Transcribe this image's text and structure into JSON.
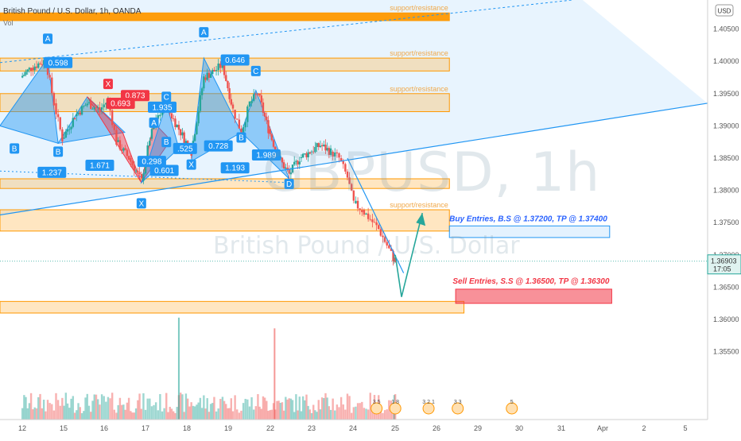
{
  "header": {
    "title": "British Pound / U.S. Dollar, 1h, OANDA",
    "vol_label": "Vol"
  },
  "watermark": {
    "symbol": "GBPUSD, 1h",
    "name": "British Pound / U.S. Dollar"
  },
  "currency_button": "USD",
  "price_tag": {
    "price": "1.36903",
    "time": "17:05"
  },
  "colors": {
    "bull": "#26a69a",
    "bear": "#ef5350",
    "orange": "#ff9800",
    "blue_zone": "#2196f3",
    "harmonic_blue": "#2196f3",
    "harmonic_red": "#f23645"
  },
  "zones": [
    {
      "name": "resistance-zone-1",
      "label": "support/resistance",
      "top": 1.4075,
      "bottom": 1.4063,
      "style": "solid"
    },
    {
      "name": "resistance-zone-2",
      "label": "support/resistance",
      "top": 1.4005,
      "bottom": 1.3985,
      "style": "light"
    },
    {
      "name": "resistance-zone-3",
      "label": "support/resistance",
      "top": 1.395,
      "bottom": 1.3922,
      "style": "light"
    },
    {
      "name": "support-zone-1",
      "label": "",
      "top": 1.3818,
      "bottom": 1.3803,
      "style": "light"
    },
    {
      "name": "support-zone-2",
      "label": "support/resistance",
      "top": 1.377,
      "bottom": 1.3737,
      "style": "light"
    },
    {
      "name": "support-zone-3",
      "label": "",
      "top": 1.3628,
      "bottom": 1.361,
      "style": "light"
    }
  ],
  "harmonic_labels": {
    "points": [
      {
        "id": "pt-a1",
        "text": "A",
        "x": 1.3,
        "y": 1.4035,
        "color": "blue"
      },
      {
        "id": "pt-b1",
        "text": "B",
        "x": 1.8,
        "y": 1.386,
        "color": "blue"
      },
      {
        "id": "pt-x1",
        "text": "X",
        "x": 4.2,
        "y": 1.3965,
        "color": "red"
      },
      {
        "id": "pt-x2",
        "text": "X",
        "x": 5.8,
        "y": 1.378,
        "color": "blue"
      },
      {
        "id": "pt-a2",
        "text": "A",
        "x": 6.4,
        "y": 1.3905,
        "color": "blue"
      },
      {
        "id": "pt-c1",
        "text": "C",
        "x": 7.0,
        "y": 1.3945,
        "color": "blue"
      },
      {
        "id": "pt-b2",
        "text": "B",
        "x": 7.0,
        "y": 1.3875,
        "color": "blue"
      },
      {
        "id": "pt-x3",
        "text": "X",
        "x": 8.2,
        "y": 1.384,
        "color": "blue"
      },
      {
        "id": "pt-a3",
        "text": "A",
        "x": 8.8,
        "y": 1.4045,
        "color": "blue"
      },
      {
        "id": "pt-b3",
        "text": "B",
        "x": 10.6,
        "y": 1.3882,
        "color": "blue"
      },
      {
        "id": "pt-c2",
        "text": "C",
        "x": 11.3,
        "y": 1.3985,
        "color": "blue"
      },
      {
        "id": "pt-d1",
        "text": "D",
        "x": 12.9,
        "y": 1.381,
        "color": "blue"
      },
      {
        "id": "pt-b0",
        "text": "B",
        "x": -0.3,
        "y": 1.3865,
        "color": "blue"
      }
    ],
    "ratios": [
      {
        "id": "r-0598",
        "text": "0.598",
        "x": 1.8,
        "y": 1.3998,
        "color": "blue"
      },
      {
        "id": "r-1237",
        "text": "1.237",
        "x": 1.5,
        "y": 1.3828,
        "color": "blue"
      },
      {
        "id": "r-1671",
        "text": "1.671",
        "x": 3.8,
        "y": 1.3839,
        "color": "blue"
      },
      {
        "id": "r-0873",
        "text": "0.873",
        "x": 5.5,
        "y": 1.3947,
        "color": "red"
      },
      {
        "id": "r-0693",
        "text": "0.693",
        "x": 4.8,
        "y": 1.3935,
        "color": "red"
      },
      {
        "id": "r-1935",
        "text": "1.935",
        "x": 6.8,
        "y": 1.3929,
        "color": "blue"
      },
      {
        "id": "r-0298",
        "text": "0.298",
        "x": 6.3,
        "y": 1.3845,
        "color": "blue"
      },
      {
        "id": "r-0601",
        "text": "0.601",
        "x": 6.9,
        "y": 1.3831,
        "color": "blue"
      },
      {
        "id": "r-525",
        "text": ".525",
        "x": 7.9,
        "y": 1.3865,
        "color": "blue"
      },
      {
        "id": "r-0646",
        "text": "0.646",
        "x": 10.3,
        "y": 1.4002,
        "color": "blue"
      },
      {
        "id": "r-0728",
        "text": "0.728",
        "x": 9.5,
        "y": 1.3869,
        "color": "blue"
      },
      {
        "id": "r-1193",
        "text": "1.193",
        "x": 10.3,
        "y": 1.3835,
        "color": "blue"
      },
      {
        "id": "r-1989",
        "text": "1.989",
        "x": 11.8,
        "y": 1.3855,
        "color": "blue"
      }
    ]
  },
  "annotations": {
    "buy": {
      "text": "Buy Entries, B.S @ 1.37200, TP @ 1.37400"
    },
    "sell": {
      "text": "Sell Entries, S.S @ 1.36500, TP @ 1.36300"
    }
  },
  "event_icons": [
    {
      "id": "ev-1",
      "text": "3 5",
      "x": 17.1
    },
    {
      "id": "ev-2",
      "text": "1 8",
      "x": 18.0
    },
    {
      "id": "ev-3",
      "text": "3 2 1",
      "x": 19.6
    },
    {
      "id": "ev-4",
      "text": "3 3",
      "x": 21.0
    },
    {
      "id": "ev-5",
      "text": "5",
      "x": 23.6
    }
  ],
  "chart_data": {
    "type": "candlestick",
    "title": "British Pound / U.S. Dollar, 1h, OANDA",
    "ylim": [
      1.3445,
      1.4095
    ],
    "y_ticks": [
      "1.35500",
      "1.36000",
      "1.36500",
      "1.37000",
      "1.37500",
      "1.38000",
      "1.38500",
      "1.39000",
      "1.39500",
      "1.40000",
      "1.40500"
    ],
    "y_tick_values": [
      1.355,
      1.36,
      1.365,
      1.37,
      1.375,
      1.38,
      1.385,
      1.39,
      1.395,
      1.4,
      1.405
    ],
    "x_ticks": [
      "12",
      "15",
      "16",
      "17",
      "18",
      "19",
      "22",
      "23",
      "24",
      "25",
      "26",
      "29",
      "30",
      "31",
      "Apr",
      "2",
      "5"
    ],
    "x_tick_positions": [
      1,
      3,
      5,
      7,
      9,
      11,
      13,
      15,
      17,
      19,
      21,
      23,
      25,
      27,
      29,
      31,
      33
    ],
    "last_price": 1.36903,
    "price_path": [
      [
        0.0,
        1.3975
      ],
      [
        0.5,
        1.399
      ],
      [
        1.2,
        1.4002
      ],
      [
        1.6,
        1.3935
      ],
      [
        2.0,
        1.388
      ],
      [
        2.6,
        1.3915
      ],
      [
        3.2,
        1.3935
      ],
      [
        3.8,
        1.3925
      ],
      [
        4.2,
        1.394
      ],
      [
        4.6,
        1.3875
      ],
      [
        5.2,
        1.385
      ],
      [
        5.8,
        1.3815
      ],
      [
        6.2,
        1.388
      ],
      [
        6.6,
        1.3915
      ],
      [
        7.0,
        1.393
      ],
      [
        7.6,
        1.3895
      ],
      [
        8.2,
        1.386
      ],
      [
        8.8,
        1.3975
      ],
      [
        9.3,
        1.3985
      ],
      [
        9.7,
        1.3995
      ],
      [
        10.2,
        1.3925
      ],
      [
        10.6,
        1.389
      ],
      [
        11.0,
        1.3935
      ],
      [
        11.4,
        1.395
      ],
      [
        11.9,
        1.3895
      ],
      [
        12.4,
        1.385
      ],
      [
        12.9,
        1.3825
      ],
      [
        13.4,
        1.385
      ],
      [
        13.9,
        1.386
      ],
      [
        14.4,
        1.387
      ],
      [
        14.9,
        1.386
      ],
      [
        15.3,
        1.385
      ],
      [
        15.7,
        1.382
      ],
      [
        16.0,
        1.378
      ],
      [
        16.4,
        1.377
      ],
      [
        16.8,
        1.3755
      ],
      [
        17.2,
        1.374
      ],
      [
        17.6,
        1.3715
      ],
      [
        17.9,
        1.3695
      ],
      [
        18.0,
        1.369
      ]
    ],
    "volume_spikes": [
      [
        7.6,
        0.95
      ],
      [
        12.2,
        0.85
      ]
    ]
  }
}
